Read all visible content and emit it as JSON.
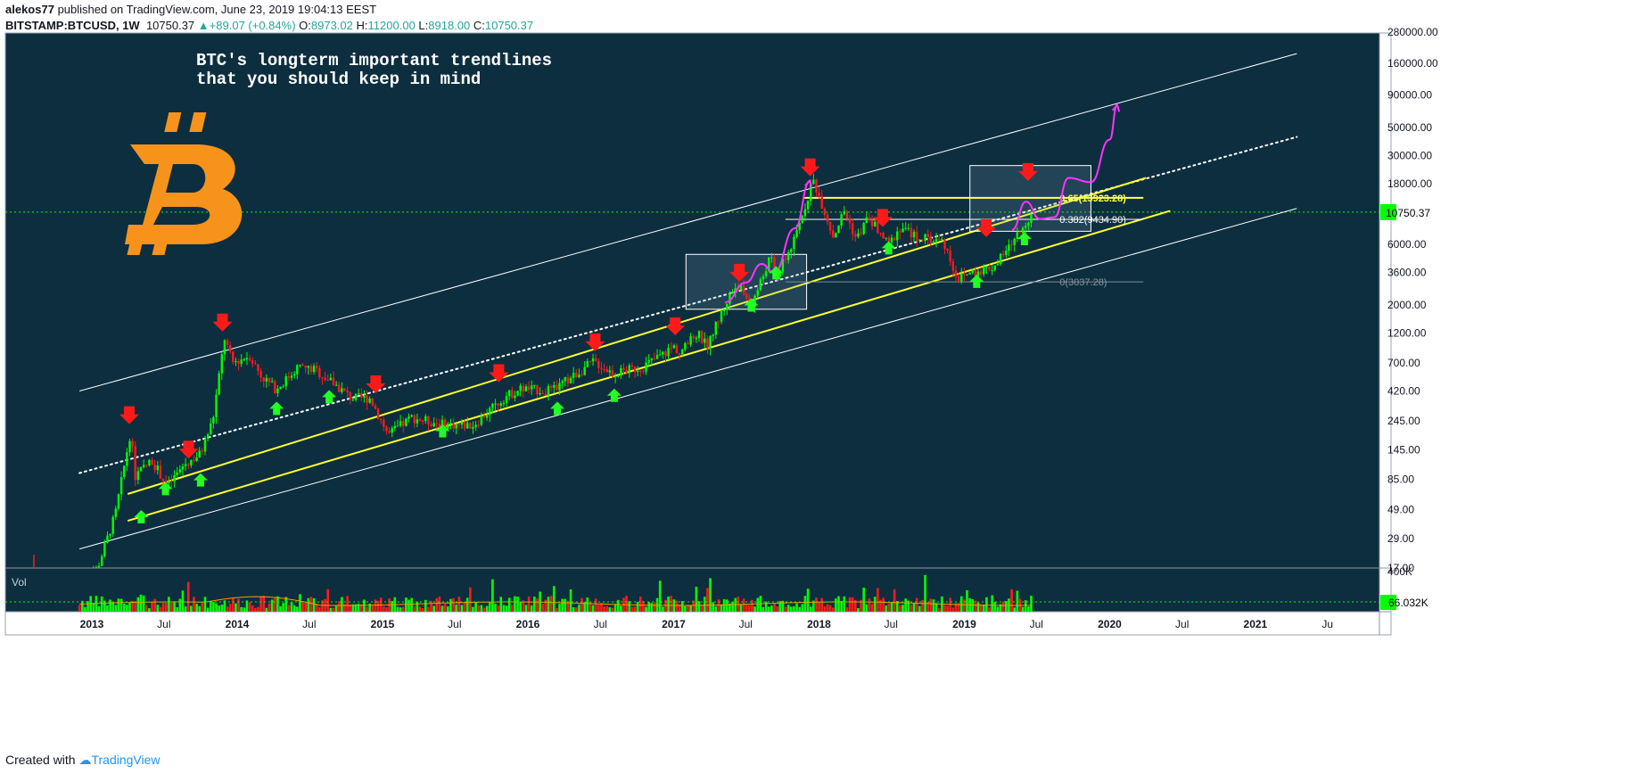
{
  "header": {
    "author": "alekos77",
    "published_text": "published on TradingView.com, June 23, 2019 19:04:13 EEST",
    "symbol": "BITSTAMP:BTCUSD, 1W",
    "last": "10750.37",
    "change": "+89.07 (+0.84%)",
    "o_label": "O:",
    "o": "8973.02",
    "h_label": "H:",
    "h": "11200.00",
    "l_label": "L:",
    "l": "8918.00",
    "c_label": "C:",
    "c": "10750.37"
  },
  "footer": {
    "created_with": "Created with",
    "brand": "TradingView"
  },
  "colors": {
    "background": "#0d2e3f",
    "up_candle": "#00ff00",
    "down_candle": "#ff1a1a",
    "trendline_white": "#ffffff",
    "trendline_yellow": "#ffff2e",
    "fib_line": "#ffff66",
    "path_magenta": "#ff33ff",
    "arrow_red": "#ff1a1a",
    "arrow_green": "#22ff22",
    "bitcoin_logo": "#f7931a",
    "price_tag": "#00ff00"
  },
  "chart_data": {
    "type": "candlestick",
    "annotation_title_line1": "BTC's longterm important trendlines",
    "annotation_title_line2": "that you should keep in mind",
    "price_scale": "log",
    "y_ticks": [
      "280000.00",
      "160000.00",
      "90000.00",
      "50000.00",
      "30000.00",
      "18000.00",
      "6000.00",
      "3600.00",
      "2000.00",
      "1200.00",
      "700.00",
      "420.00",
      "245.00",
      "145.00",
      "85.00",
      "49.00",
      "29.00",
      "17.00"
    ],
    "y_tick_values": [
      280000,
      160000,
      90000,
      50000,
      30000,
      18000,
      6000,
      3600,
      2000,
      1200,
      700,
      420,
      245,
      145,
      85,
      49,
      29,
      17
    ],
    "x_ticks": [
      "2013",
      "Jul",
      "2014",
      "Jul",
      "2015",
      "Jul",
      "2016",
      "Jul",
      "2017",
      "Jul",
      "2018",
      "Jul",
      "2019",
      "Jul",
      "2020",
      "Jul",
      "2021",
      "Ju"
    ],
    "x_tick_dates": [
      "2013-01-01",
      "2013-07-01",
      "2014-01-01",
      "2014-07-01",
      "2015-01-01",
      "2015-07-01",
      "2016-01-01",
      "2016-07-01",
      "2017-01-01",
      "2017-07-01",
      "2018-01-01",
      "2018-07-01",
      "2019-01-01",
      "2019-07-01",
      "2020-01-01",
      "2020-07-01",
      "2021-01-01",
      "2021-07-01"
    ],
    "current_price_tag": "10750.37",
    "current_price": 10750.37,
    "volume_label": "Vol",
    "volume_scale_top": "400K",
    "volume_last_tag": "66.032K",
    "fib_levels": [
      {
        "label": "0.65(13923.28)",
        "value": 13923.28
      },
      {
        "label": "0.382(9434.90)",
        "value": 9434.9
      },
      {
        "label": "0(3037.28)",
        "value": 3037.28
      }
    ],
    "price_path": [
      [
        "2012-12-01",
        13
      ],
      [
        "2013-01-15",
        17
      ],
      [
        "2013-03-01",
        45
      ],
      [
        "2013-04-08",
        200
      ],
      [
        "2013-04-20",
        90
      ],
      [
        "2013-06-01",
        120
      ],
      [
        "2013-07-10",
        75
      ],
      [
        "2013-08-20",
        110
      ],
      [
        "2013-10-01",
        135
      ],
      [
        "2013-11-01",
        250
      ],
      [
        "2013-11-30",
        1100
      ],
      [
        "2013-12-20",
        700
      ],
      [
        "2014-02-01",
        800
      ],
      [
        "2014-03-01",
        560
      ],
      [
        "2014-04-10",
        430
      ],
      [
        "2014-06-01",
        650
      ],
      [
        "2014-07-15",
        620
      ],
      [
        "2014-09-01",
        480
      ],
      [
        "2014-10-15",
        370
      ],
      [
        "2014-12-01",
        370
      ],
      [
        "2015-01-15",
        190
      ],
      [
        "2015-03-15",
        260
      ],
      [
        "2015-06-01",
        230
      ],
      [
        "2015-08-15",
        225
      ],
      [
        "2015-11-05",
        380
      ],
      [
        "2015-12-15",
        440
      ],
      [
        "2016-03-01",
        420
      ],
      [
        "2016-06-15",
        720
      ],
      [
        "2016-08-01",
        580
      ],
      [
        "2016-10-15",
        650
      ],
      [
        "2017-01-05",
        950
      ],
      [
        "2017-01-15",
        820
      ],
      [
        "2017-03-01",
        1200
      ],
      [
        "2017-03-25",
        960
      ],
      [
        "2017-05-25",
        2500
      ],
      [
        "2017-06-12",
        2900
      ],
      [
        "2017-07-15",
        1950
      ],
      [
        "2017-09-01",
        4800
      ],
      [
        "2017-09-15",
        3300
      ],
      [
        "2017-11-01",
        6500
      ],
      [
        "2017-12-17",
        19500
      ],
      [
        "2018-01-15",
        11000
      ],
      [
        "2018-02-06",
        6900
      ],
      [
        "2018-03-05",
        11000
      ],
      [
        "2018-04-05",
        6600
      ],
      [
        "2018-05-05",
        9800
      ],
      [
        "2018-06-25",
        5900
      ],
      [
        "2018-07-25",
        8300
      ],
      [
        "2018-09-01",
        6900
      ],
      [
        "2018-11-10",
        6300
      ],
      [
        "2018-12-15",
        3200
      ],
      [
        "2019-01-15",
        3600
      ],
      [
        "2019-03-15",
        4000
      ],
      [
        "2019-04-15",
        5200
      ],
      [
        "2019-05-25",
        8000
      ],
      [
        "2019-06-23",
        10750
      ]
    ],
    "trendlines": [
      {
        "color": "white",
        "style": "solid",
        "p1": [
          "2012-12-01",
          420
        ],
        "p2": [
          "2021-04-15",
          190000
        ]
      },
      {
        "color": "white",
        "style": "dotted",
        "p1": [
          "2012-12-01",
          95
        ],
        "p2": [
          "2021-04-15",
          42000
        ]
      },
      {
        "color": "yellow",
        "style": "solid",
        "p1": [
          "2013-04-01",
          65
        ],
        "p2": [
          "2020-04-01",
          20000
        ]
      },
      {
        "color": "yellow",
        "style": "solid",
        "p1": [
          "2013-04-01",
          40
        ],
        "p2": [
          "2020-06-01",
          11000
        ]
      },
      {
        "color": "white",
        "style": "solid",
        "p1": [
          "2012-12-01",
          24
        ],
        "p2": [
          "2021-04-15",
          11500
        ]
      }
    ],
    "boxes": [
      {
        "from": [
          "2017-02-01",
          5000
        ],
        "to": [
          "2017-12-01",
          1850
        ]
      },
      {
        "from": [
          "2019-01-15",
          25000
        ],
        "to": [
          "2019-11-15",
          7600
        ]
      }
    ],
    "projection_path": [
      [
        "2017-05-10",
        2100
      ],
      [
        "2017-07-01",
        3000
      ],
      [
        "2017-08-10",
        4200
      ],
      [
        "2017-09-10",
        3600
      ],
      [
        "2017-11-01",
        8000
      ],
      [
        "2017-12-10",
        19000
      ],
      [
        "2019-05-01",
        7800
      ],
      [
        "2019-06-05",
        13000
      ],
      [
        "2019-07-10",
        9500
      ],
      [
        "2019-08-15",
        9800
      ],
      [
        "2019-09-20",
        20000
      ],
      [
        "2019-11-15",
        18500
      ],
      [
        "2020-01-01",
        40000
      ],
      [
        "2020-01-20",
        75000
      ]
    ],
    "red_arrows": [
      [
        "2013-04-05",
        280
      ],
      [
        "2013-09-01",
        150
      ],
      [
        "2013-11-25",
        1500
      ],
      [
        "2014-12-15",
        490
      ],
      [
        "2015-10-20",
        600
      ],
      [
        "2016-06-18",
        1050
      ],
      [
        "2017-01-05",
        1400
      ],
      [
        "2017-06-15",
        3700
      ],
      [
        "2017-12-10",
        25000
      ],
      [
        "2018-06-10",
        10000
      ],
      [
        "2019-02-25",
        8300
      ],
      [
        "2019-06-10",
        23000
      ]
    ],
    "green_arrows": [
      [
        "2013-05-05",
        42
      ],
      [
        "2013-07-05",
        70
      ],
      [
        "2013-10-01",
        82
      ],
      [
        "2014-04-10",
        300
      ],
      [
        "2014-08-20",
        370
      ],
      [
        "2015-06-01",
        200
      ],
      [
        "2016-03-15",
        300
      ],
      [
        "2016-08-05",
        380
      ],
      [
        "2017-07-15",
        1950
      ],
      [
        "2017-09-15",
        3500
      ],
      [
        "2018-06-25",
        5500
      ],
      [
        "2019-02-01",
        3000
      ],
      [
        "2019-06-01",
        6500
      ]
    ]
  }
}
